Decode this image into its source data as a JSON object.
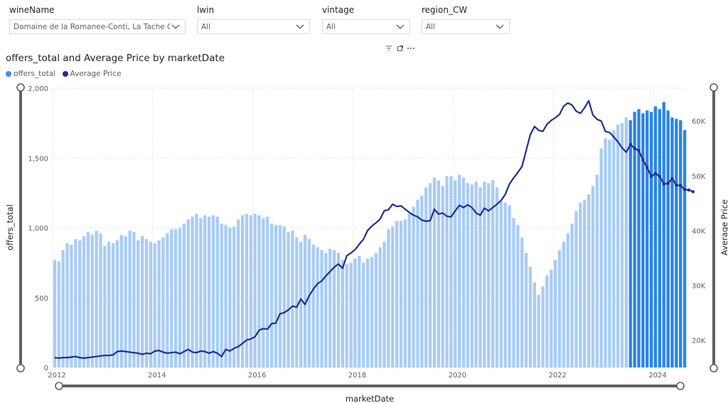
{
  "slicers": [
    {
      "title": "wineName",
      "value": "Domaine de la Romanee-Conti, La Tache Gran..."
    },
    {
      "title": "lwin",
      "value": "All"
    },
    {
      "title": "vintage",
      "value": "All"
    },
    {
      "title": "region_CW",
      "value": "All"
    }
  ],
  "visual_header": {
    "icons": [
      "filter-icon",
      "focus-mode-icon",
      "more-options-icon"
    ]
  },
  "colors": {
    "bar_light": "#a9ccf6",
    "bar_dark": "#2b84e8",
    "line": "#1f2e93",
    "grid": "#dcdcdc",
    "scroll": "#5f5f5f"
  },
  "chart_data": {
    "type": "bar",
    "title": "offers_total and Average Price by marketDate",
    "xlabel": "marketDate",
    "ylabel": "offers_total",
    "y2label": "Average Price",
    "legend": [
      {
        "name": "offers_total",
        "color": "#3a8ff0"
      },
      {
        "name": "Average Price",
        "color": "#1f2e93"
      }
    ],
    "legend_position": "top-left",
    "grid": true,
    "x_tick_labels": [
      "2012",
      "2014",
      "2016",
      "2018",
      "2020",
      "2022",
      "2024"
    ],
    "y_ticks": [
      "0",
      "500",
      "1,000",
      "1,500",
      "2,000"
    ],
    "y2_ticks": [
      "20K",
      "30K",
      "40K",
      "50K",
      "60K"
    ],
    "ylim": [
      0,
      2000
    ],
    "y2lim": [
      15000,
      66000
    ],
    "start_month": "2012-01",
    "highlight_from": "2023-07",
    "offers_total": [
      770,
      760,
      840,
      890,
      880,
      920,
      910,
      940,
      970,
      950,
      980,
      960,
      870,
      900,
      890,
      910,
      950,
      940,
      980,
      970,
      910,
      940,
      920,
      900,
      890,
      910,
      930,
      960,
      990,
      990,
      1000,
      1030,
      1060,
      1080,
      1100,
      1070,
      1090,
      1080,
      1090,
      1080,
      1030,
      1020,
      1000,
      1010,
      1060,
      1090,
      1100,
      1090,
      1100,
      1090,
      1070,
      1080,
      1030,
      1020,
      1020,
      1010,
      970,
      980,
      930,
      900,
      950,
      920,
      880,
      860,
      840,
      820,
      850,
      840,
      820,
      770,
      740,
      750,
      780,
      800,
      750,
      780,
      790,
      820,
      860,
      900,
      990,
      1010,
      1050,
      1050,
      1060,
      1100,
      1150,
      1200,
      1230,
      1290,
      1320,
      1360,
      1340,
      1300,
      1370,
      1370,
      1340,
      1380,
      1360,
      1320,
      1310,
      1330,
      1290,
      1330,
      1320,
      1340,
      1290,
      1190,
      1180,
      1160,
      1070,
      1020,
      930,
      820,
      720,
      610,
      520,
      580,
      660,
      700,
      770,
      840,
      900,
      960,
      1030,
      1120,
      1180,
      1200,
      1240,
      1300,
      1380,
      1570,
      1640,
      1630,
      1700,
      1740,
      1750,
      1790,
      1770,
      1830,
      1850,
      1820,
      1840,
      1830,
      1870,
      1850,
      1900,
      1840,
      1790,
      1780,
      1770,
      1700
    ],
    "average_price": [
      16800,
      16700,
      16800,
      16800,
      16900,
      17000,
      16800,
      16700,
      16800,
      16900,
      17000,
      17100,
      17200,
      17200,
      17300,
      17900,
      18000,
      17900,
      17800,
      17700,
      17600,
      17400,
      17600,
      17500,
      18000,
      18100,
      17800,
      17600,
      17700,
      17800,
      17500,
      17900,
      18300,
      17800,
      17700,
      18000,
      17900,
      17600,
      17900,
      17600,
      17000,
      18300,
      18000,
      18500,
      18800,
      19400,
      20000,
      20200,
      20600,
      21800,
      22100,
      22000,
      23000,
      23100,
      24800,
      25000,
      25500,
      26200,
      26000,
      27500,
      26500,
      28100,
      29300,
      30300,
      30800,
      31700,
      32500,
      33300,
      33900,
      33100,
      35400,
      35900,
      36500,
      37500,
      38400,
      40000,
      40800,
      41400,
      42100,
      43600,
      43800,
      44800,
      44400,
      44500,
      43900,
      43300,
      42800,
      42500,
      41900,
      41700,
      41800,
      43900,
      43000,
      43200,
      42600,
      42500,
      43600,
      44600,
      44200,
      44700,
      44200,
      43200,
      42800,
      44100,
      43600,
      44200,
      44800,
      45500,
      46600,
      48500,
      49600,
      50600,
      51700,
      54600,
      57500,
      59000,
      58300,
      58100,
      59400,
      60100,
      60600,
      61200,
      62700,
      63300,
      62900,
      61800,
      61400,
      62400,
      63700,
      61100,
      60300,
      60000,
      58100,
      57900,
      57100,
      56200,
      55100,
      54300,
      55700,
      55000,
      54600,
      52900,
      51500,
      49900,
      50400,
      49900,
      48500,
      48600,
      49500,
      48300,
      48200,
      47500,
      47400,
      47100
    ],
    "series": [
      {
        "name": "offers_total",
        "axis": "left",
        "values_key": "offers_total"
      },
      {
        "name": "Average Price",
        "axis": "right",
        "values_key": "average_price"
      }
    ]
  }
}
